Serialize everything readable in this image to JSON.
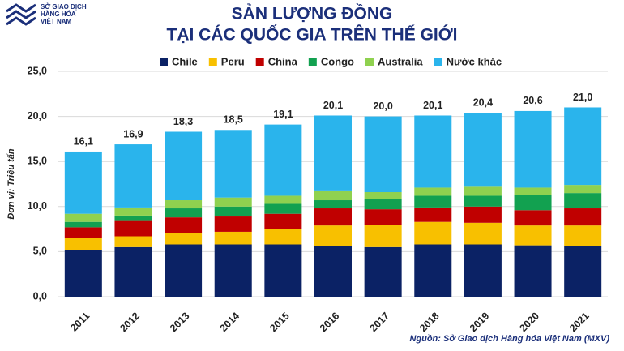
{
  "logo_lines": [
    "SỞ GIAO DỊCH",
    "HÀNG HÓA",
    "VIỆT NAM"
  ],
  "chart_data": {
    "type": "stacked_bar",
    "title_lines": [
      "SẢN LƯỢNG ĐỒNG",
      "TẠI CÁC QUỐC GIA TRÊN THẾ GIỚI"
    ],
    "y_label": "Đơn vị: Triệu tấn",
    "source": "Nguồn: Sở Giao dịch Hàng hóa Việt Nam (MXV)",
    "categories": [
      "2011",
      "2012",
      "2013",
      "2014",
      "2015",
      "2016",
      "2017",
      "2018",
      "2019",
      "2020",
      "2021"
    ],
    "series": [
      {
        "name": "Chile",
        "color": "#0b2265",
        "values": [
          5.2,
          5.5,
          5.8,
          5.8,
          5.8,
          5.6,
          5.5,
          5.8,
          5.8,
          5.7,
          5.6
        ]
      },
      {
        "name": "Peru",
        "color": "#f8c000",
        "values": [
          1.3,
          1.2,
          1.3,
          1.4,
          1.7,
          2.3,
          2.5,
          2.5,
          2.4,
          2.2,
          2.3
        ]
      },
      {
        "name": "China",
        "color": "#c00000",
        "values": [
          1.2,
          1.7,
          1.7,
          1.7,
          1.7,
          1.9,
          1.7,
          1.6,
          1.8,
          1.7,
          1.9
        ]
      },
      {
        "name": "Congo",
        "color": "#12a150",
        "values": [
          0.6,
          0.6,
          1.0,
          1.1,
          1.1,
          0.9,
          1.1,
          1.3,
          1.2,
          1.7,
          1.7
        ]
      },
      {
        "name": "Australia",
        "color": "#8fd14f",
        "values": [
          0.9,
          0.9,
          0.9,
          1.0,
          0.9,
          1.0,
          0.8,
          0.9,
          1.0,
          0.8,
          0.9
        ]
      },
      {
        "name": "Nước khác",
        "color": "#2ab4ec",
        "values": [
          6.9,
          7.0,
          7.6,
          7.5,
          7.9,
          8.4,
          8.4,
          8.0,
          8.2,
          8.5,
          8.6
        ]
      }
    ],
    "totals": [
      16.1,
      16.9,
      18.3,
      18.5,
      19.1,
      20.1,
      20.0,
      20.1,
      20.4,
      20.6,
      21.0
    ],
    "total_labels": [
      "16,1",
      "16,9",
      "18,3",
      "18,5",
      "19,1",
      "20,1",
      "20,0",
      "20,1",
      "20,4",
      "20,6",
      "21,0"
    ],
    "ylim": [
      0,
      25
    ],
    "yticks": [
      {
        "value": 0,
        "label": "0,0"
      },
      {
        "value": 5,
        "label": "5,0"
      },
      {
        "value": 10,
        "label": "10,0"
      },
      {
        "value": 15,
        "label": "15,0"
      },
      {
        "value": 20,
        "label": "20,0"
      },
      {
        "value": 25,
        "label": "25,0"
      }
    ],
    "grid": true
  }
}
